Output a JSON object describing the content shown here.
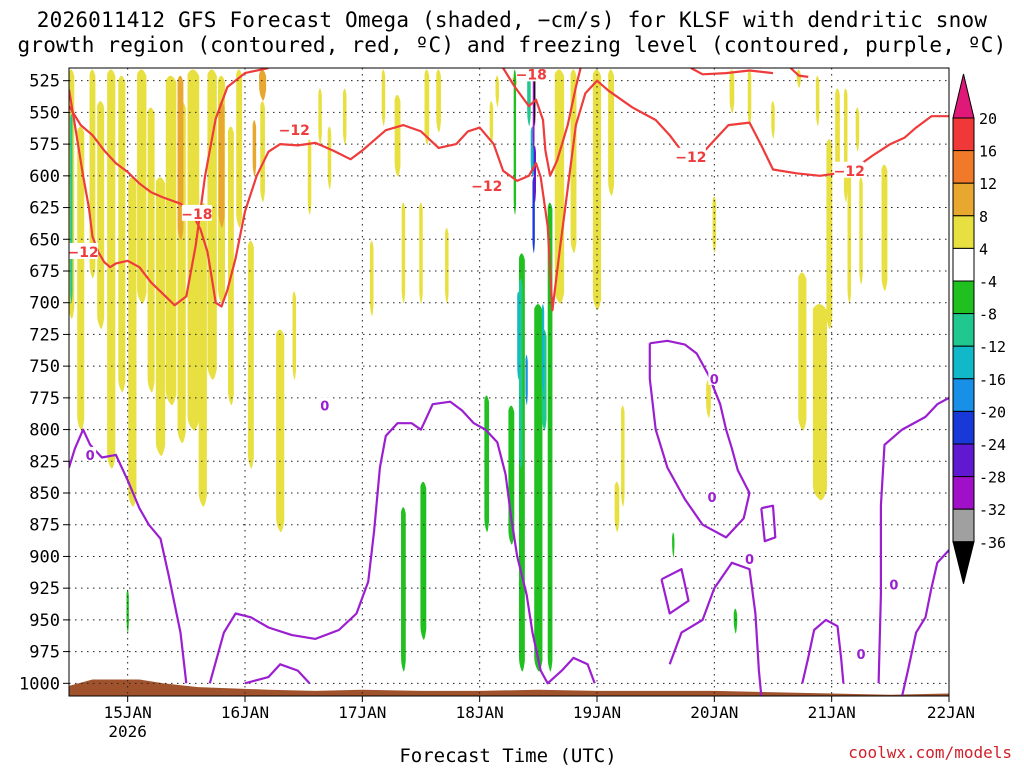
{
  "chart_data": {
    "type": "heatmap",
    "title_line1": "2026011412 GFS Forecast Omega (shaded, −cm/s) for KLSF with dendritic snow",
    "title_line2": "growth region (contoured, red, ºC) and freezing level (contoured, purple, ºC)",
    "xlabel": "Forecast Time (UTC)",
    "credit": "coolwx.com/models",
    "pressure_levels": [
      "525",
      "550",
      "575",
      "600",
      "625",
      "650",
      "675",
      "700",
      "725",
      "750",
      "775",
      "800",
      "825",
      "850",
      "875",
      "900",
      "925",
      "950",
      "975",
      "1000"
    ],
    "pressure_range": [
      515,
      1010
    ],
    "time_range_days": [
      14.5,
      22.0
    ],
    "date_ticks": [
      {
        "day": 15,
        "label": "15JAN",
        "sublabel": "2026"
      },
      {
        "day": 16,
        "label": "16JAN"
      },
      {
        "day": 17,
        "label": "17JAN"
      },
      {
        "day": 18,
        "label": "18JAN"
      },
      {
        "day": 19,
        "label": "19JAN"
      },
      {
        "day": 20,
        "label": "20JAN"
      },
      {
        "day": 21,
        "label": "21JAN"
      },
      {
        "day": 22,
        "label": "22JAN"
      }
    ],
    "colorbar": {
      "labels": [
        "20",
        "16",
        "12",
        "8",
        "4",
        "-4",
        "-8",
        "-12",
        "-16",
        "-20",
        "-24",
        "-28",
        "-32",
        "-36"
      ],
      "colors": [
        "#e01878",
        "#f03838",
        "#f07a2a",
        "#e8a830",
        "#e8e040",
        "#ffffff",
        "#20c020",
        "#20c890",
        "#10b8c8",
        "#1890e8",
        "#1838d8",
        "#6018d0",
        "#a010c8",
        "#a0a0a0",
        "#000000"
      ]
    },
    "dgz_labels": [
      {
        "t": 14.62,
        "p": 660,
        "text": "−12"
      },
      {
        "t": 15.59,
        "p": 630,
        "text": "−18"
      },
      {
        "t": 16.42,
        "p": 564,
        "text": "−12"
      },
      {
        "t": 18.06,
        "p": 608,
        "text": "−12"
      },
      {
        "t": 18.44,
        "p": 520,
        "text": "−18"
      },
      {
        "t": 19.8,
        "p": 585,
        "text": "−12"
      },
      {
        "t": 21.15,
        "p": 596,
        "text": "−12"
      }
    ],
    "freezing_labels": [
      {
        "t": 14.68,
        "p": 820,
        "text": "0"
      },
      {
        "t": 16.68,
        "p": 781,
        "text": "0"
      },
      {
        "t": 20.0,
        "p": 760,
        "text": "0"
      },
      {
        "t": 19.98,
        "p": 853,
        "text": "0"
      },
      {
        "t": 20.3,
        "p": 902,
        "text": "0"
      },
      {
        "t": 21.53,
        "p": 922,
        "text": "0"
      },
      {
        "t": 21.25,
        "p": 977,
        "text": "0"
      }
    ],
    "dgz_lines": [
      [
        [
          14.5,
          545
        ],
        [
          14.6,
          560
        ],
        [
          14.7,
          568
        ],
        [
          14.8,
          580
        ],
        [
          14.9,
          590
        ],
        [
          15.0,
          597
        ],
        [
          15.1,
          606
        ],
        [
          15.2,
          613
        ],
        [
          15.3,
          617
        ],
        [
          15.45,
          622
        ],
        [
          15.55,
          630
        ],
        [
          15.62,
          642
        ],
        [
          15.68,
          660
        ],
        [
          15.72,
          682
        ],
        [
          15.75,
          700
        ],
        [
          15.8,
          703
        ],
        [
          15.85,
          690
        ],
        [
          15.92,
          665
        ],
        [
          16.0,
          628
        ],
        [
          16.1,
          600
        ],
        [
          16.2,
          581
        ],
        [
          16.3,
          575
        ],
        [
          16.45,
          576
        ],
        [
          16.6,
          574
        ],
        [
          16.75,
          580
        ],
        [
          16.9,
          587
        ],
        [
          17.0,
          580
        ],
        [
          17.1,
          572
        ],
        [
          17.2,
          564
        ],
        [
          17.35,
          560
        ],
        [
          17.5,
          565
        ],
        [
          17.65,
          578
        ],
        [
          17.8,
          575
        ],
        [
          17.9,
          565
        ],
        [
          18.0,
          562
        ],
        [
          18.12,
          575
        ],
        [
          18.2,
          596
        ],
        [
          18.32,
          604
        ],
        [
          18.42,
          600
        ],
        [
          18.48,
          590
        ],
        [
          18.52,
          601
        ],
        [
          18.58,
          640
        ],
        [
          18.62,
          706
        ],
        [
          18.68,
          660
        ],
        [
          18.75,
          610
        ],
        [
          18.82,
          560
        ],
        [
          18.9,
          535
        ],
        [
          19.0,
          525
        ],
        [
          19.1,
          533
        ],
        [
          19.3,
          546
        ],
        [
          19.5,
          556
        ],
        [
          19.62,
          568
        ],
        [
          19.75,
          584
        ],
        [
          19.9,
          582
        ],
        [
          20.0,
          572
        ],
        [
          20.12,
          560
        ],
        [
          20.3,
          558
        ],
        [
          20.4,
          576
        ],
        [
          20.5,
          595
        ],
        [
          20.7,
          598
        ],
        [
          20.9,
          600
        ],
        [
          21.05,
          598
        ],
        [
          21.2,
          594
        ],
        [
          21.35,
          584
        ],
        [
          21.5,
          575
        ],
        [
          21.62,
          570
        ],
        [
          21.72,
          562
        ],
        [
          21.85,
          553
        ],
        [
          22.0,
          553
        ]
      ],
      [
        [
          14.5,
          532
        ],
        [
          14.55,
          560
        ],
        [
          14.62,
          600
        ],
        [
          14.67,
          625
        ],
        [
          14.7,
          648
        ],
        [
          14.75,
          660
        ],
        [
          14.8,
          668
        ],
        [
          14.85,
          672
        ],
        [
          14.9,
          669
        ],
        [
          15.0,
          667
        ],
        [
          15.1,
          672
        ],
        [
          15.2,
          684
        ],
        [
          15.3,
          693
        ],
        [
          15.4,
          702
        ],
        [
          15.5,
          695
        ],
        [
          15.58,
          655
        ],
        [
          15.66,
          600
        ],
        [
          15.75,
          555
        ],
        [
          15.85,
          530
        ],
        [
          16.0,
          519
        ],
        [
          16.2,
          515
        ]
      ],
      [
        [
          18.2,
          515
        ],
        [
          18.3,
          530
        ],
        [
          18.42,
          545
        ],
        [
          18.48,
          540
        ],
        [
          18.54,
          556
        ],
        [
          18.56,
          580
        ],
        [
          18.6,
          600
        ],
        [
          18.66,
          588
        ],
        [
          18.75,
          560
        ],
        [
          18.82,
          530
        ],
        [
          18.86,
          515
        ]
      ],
      [
        [
          19.8,
          515
        ],
        [
          19.9,
          520
        ],
        [
          20.1,
          519
        ],
        [
          20.3,
          517
        ],
        [
          20.5,
          519
        ]
      ],
      [
        [
          20.65,
          515
        ],
        [
          20.72,
          521
        ],
        [
          20.8,
          522
        ]
      ]
    ],
    "freezing_lines": [
      [
        [
          14.5,
          830
        ],
        [
          14.55,
          815
        ],
        [
          14.62,
          800
        ],
        [
          14.68,
          812
        ],
        [
          14.78,
          822
        ],
        [
          14.9,
          820
        ],
        [
          15.0,
          840
        ],
        [
          15.1,
          862
        ],
        [
          15.18,
          875
        ],
        [
          15.28,
          886
        ],
        [
          15.35,
          915
        ],
        [
          15.45,
          960
        ],
        [
          15.5,
          1000
        ]
      ],
      [
        [
          15.7,
          1000
        ],
        [
          15.82,
          960
        ],
        [
          15.92,
          945
        ],
        [
          16.05,
          948
        ],
        [
          16.2,
          956
        ],
        [
          16.4,
          962
        ],
        [
          16.6,
          965
        ],
        [
          16.8,
          958
        ],
        [
          16.95,
          945
        ],
        [
          17.05,
          920
        ],
        [
          17.1,
          880
        ],
        [
          17.15,
          830
        ],
        [
          17.2,
          805
        ],
        [
          17.3,
          795
        ],
        [
          17.42,
          795
        ],
        [
          17.5,
          800
        ],
        [
          17.6,
          780
        ],
        [
          17.75,
          778
        ],
        [
          17.85,
          785
        ],
        [
          17.95,
          795
        ],
        [
          18.05,
          800
        ],
        [
          18.15,
          810
        ],
        [
          18.22,
          835
        ],
        [
          18.27,
          870
        ],
        [
          18.32,
          900
        ],
        [
          18.4,
          930
        ],
        [
          18.45,
          960
        ],
        [
          18.52,
          990
        ],
        [
          18.58,
          1000
        ],
        [
          18.7,
          990
        ],
        [
          18.8,
          980
        ],
        [
          18.92,
          985
        ],
        [
          18.98,
          1000
        ]
      ],
      [
        [
          16.0,
          1000
        ],
        [
          16.2,
          995
        ],
        [
          16.3,
          985
        ],
        [
          16.45,
          990
        ],
        [
          16.55,
          1000
        ]
      ],
      [
        [
          19.45,
          732
        ],
        [
          19.6,
          730
        ],
        [
          19.75,
          733
        ],
        [
          19.85,
          740
        ],
        [
          19.95,
          757
        ],
        [
          20.05,
          780
        ],
        [
          20.1,
          800
        ],
        [
          20.15,
          815
        ],
        [
          20.2,
          832
        ],
        [
          20.3,
          850
        ],
        [
          20.25,
          870
        ],
        [
          20.1,
          885
        ],
        [
          19.9,
          875
        ],
        [
          19.75,
          855
        ],
        [
          19.6,
          830
        ],
        [
          19.5,
          800
        ],
        [
          19.45,
          760
        ],
        [
          19.45,
          732
        ]
      ],
      [
        [
          20.4,
          862
        ],
        [
          20.5,
          860
        ],
        [
          20.52,
          885
        ],
        [
          20.43,
          888
        ],
        [
          20.4,
          862
        ]
      ],
      [
        [
          19.55,
          918
        ],
        [
          19.72,
          910
        ],
        [
          19.78,
          935
        ],
        [
          19.62,
          945
        ],
        [
          19.55,
          918
        ]
      ],
      [
        [
          19.62,
          985
        ],
        [
          19.72,
          960
        ],
        [
          19.9,
          950
        ],
        [
          20.0,
          925
        ],
        [
          20.15,
          905
        ],
        [
          20.3,
          910
        ],
        [
          20.35,
          945
        ],
        [
          20.38,
          990
        ],
        [
          20.4,
          1010
        ]
      ],
      [
        [
          20.75,
          1000
        ],
        [
          20.8,
          980
        ],
        [
          20.85,
          958
        ],
        [
          20.95,
          950
        ],
        [
          21.05,
          955
        ],
        [
          21.08,
          980
        ],
        [
          21.1,
          1000
        ]
      ],
      [
        [
          21.6,
          1010
        ],
        [
          21.65,
          990
        ],
        [
          21.72,
          960
        ],
        [
          21.8,
          948
        ],
        [
          21.85,
          925
        ],
        [
          21.9,
          905
        ],
        [
          22.0,
          895
        ]
      ],
      [
        [
          21.4,
          1000
        ],
        [
          21.42,
          930
        ],
        [
          21.42,
          860
        ],
        [
          21.45,
          812
        ],
        [
          21.6,
          800
        ],
        [
          21.8,
          790
        ],
        [
          21.9,
          780
        ],
        [
          22.0,
          775
        ]
      ]
    ]
  }
}
